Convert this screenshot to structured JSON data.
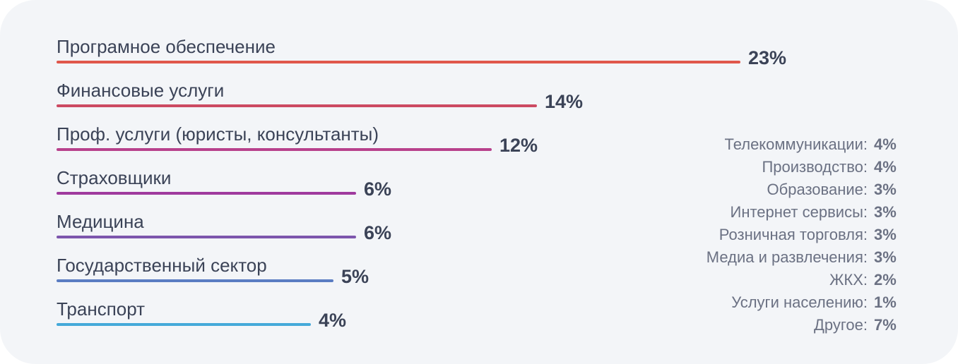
{
  "chart_data": {
    "type": "bar",
    "orientation": "horizontal",
    "categories": [
      "Програмное обеспечение",
      "Финансовые услуги",
      "Проф. услуги (юристы, консультанты)",
      "Страховщики",
      "Медицина",
      "Государственный сектор",
      "Транспорт"
    ],
    "values": [
      23,
      14,
      12,
      6,
      6,
      5,
      4
    ],
    "value_labels": [
      "23%",
      "14%",
      "12%",
      "6%",
      "6%",
      "5%",
      "4%"
    ],
    "colors": [
      "#e0574b",
      "#cc4a62",
      "#b8418c",
      "#9f3a9e",
      "#7d56ad",
      "#5a7cc2",
      "#44a9d9"
    ],
    "others": {
      "categories": [
        "Телекоммуникации:",
        "Производство:",
        "Образование:",
        "Интернет сервисы:",
        "Розничная торговля:",
        "Медиа и развлечения:",
        "ЖКХ:",
        "Услуги населению:",
        "Другое:"
      ],
      "values": [
        4,
        4,
        3,
        3,
        3,
        3,
        2,
        1,
        7
      ],
      "value_labels": [
        "4%",
        "4%",
        "3%",
        "3%",
        "3%",
        "3%",
        "2%",
        "1%",
        "7%"
      ]
    }
  }
}
